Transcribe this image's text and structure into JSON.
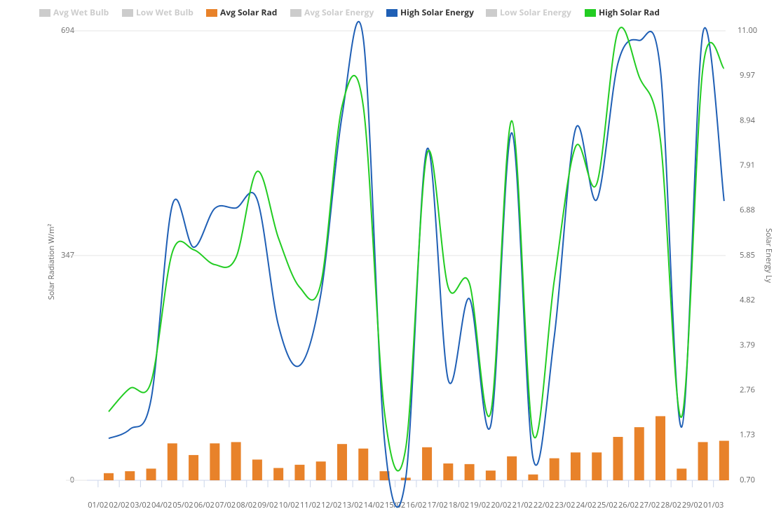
{
  "chart_data": {
    "type": "combo",
    "y_label": "Solar Radiation W/m²",
    "y2_label": "Solar Energy Ly",
    "categories": [
      "01/02",
      "02/02",
      "03/02",
      "04/02",
      "05/02",
      "06/02",
      "07/02",
      "08/02",
      "09/02",
      "10/02",
      "11/02",
      "12/02",
      "13/02",
      "14/02",
      "15/02",
      "16/02",
      "17/02",
      "18/02",
      "19/02",
      "20/02",
      "21/02",
      "22/02",
      "23/02",
      "24/02",
      "25/02",
      "26/02",
      "27/02",
      "28/02",
      "29/02",
      "01/03"
    ],
    "ylim": [
      0,
      694
    ],
    "yticks": [
      0,
      347,
      694
    ],
    "y2lim": [
      0.7,
      11.0
    ],
    "y2ticks": [
      {
        "value": 0.7,
        "label": "0.70"
      },
      1.73,
      2.76,
      3.79,
      4.82,
      5.85,
      6.88,
      7.91,
      8.94,
      9.97,
      {
        "value": 11,
        "label": "11.00"
      }
    ],
    "grid": true,
    "series": [
      {
        "name": "Avg Wet Bulb",
        "color": "#cccccc",
        "visible": false
      },
      {
        "name": "Low Wet Bulb",
        "color": "#cccccc",
        "visible": false
      },
      {
        "name": "Avg Solar Rad",
        "color": "#e8822a",
        "type": "bar",
        "visible": true,
        "values": [
          11,
          14,
          18,
          57,
          39,
          57,
          59,
          32,
          19,
          24,
          29,
          56,
          49,
          14,
          4,
          51,
          26,
          25,
          15,
          37,
          9,
          34,
          43,
          43,
          67,
          82,
          99,
          18,
          59,
          61
        ]
      },
      {
        "name": "Avg Solar Energy",
        "color": "#cccccc",
        "visible": false
      },
      {
        "name": "High Solar Energy",
        "color": "#1f5fb5",
        "type": "line",
        "axis": "y2",
        "visible": true,
        "values": [
          1.66,
          1.87,
          2.56,
          7.01,
          6.04,
          6.93,
          6.94,
          7.13,
          4.25,
          3.33,
          4.97,
          9.06,
          10.82,
          1.6,
          0.75,
          8.29,
          3.0,
          4.86,
          1.95,
          8.66,
          1.2,
          4.0,
          8.75,
          7.13,
          10.26,
          10.78,
          10.1,
          1.92,
          10.95,
          7.1
        ]
      },
      {
        "name": "Low Solar Energy",
        "color": "#cccccc",
        "visible": false
      },
      {
        "name": "High Solar Rad",
        "color": "#22cc22",
        "type": "line",
        "visible": true,
        "values": [
          106,
          142,
          152,
          352,
          356,
          333,
          344,
          477,
          374,
          298,
          304,
          578,
          577,
          104,
          50,
          504,
          298,
          304,
          104,
          555,
          71,
          309,
          515,
          458,
          693,
          623,
          525,
          98,
          636,
          636
        ]
      }
    ]
  }
}
